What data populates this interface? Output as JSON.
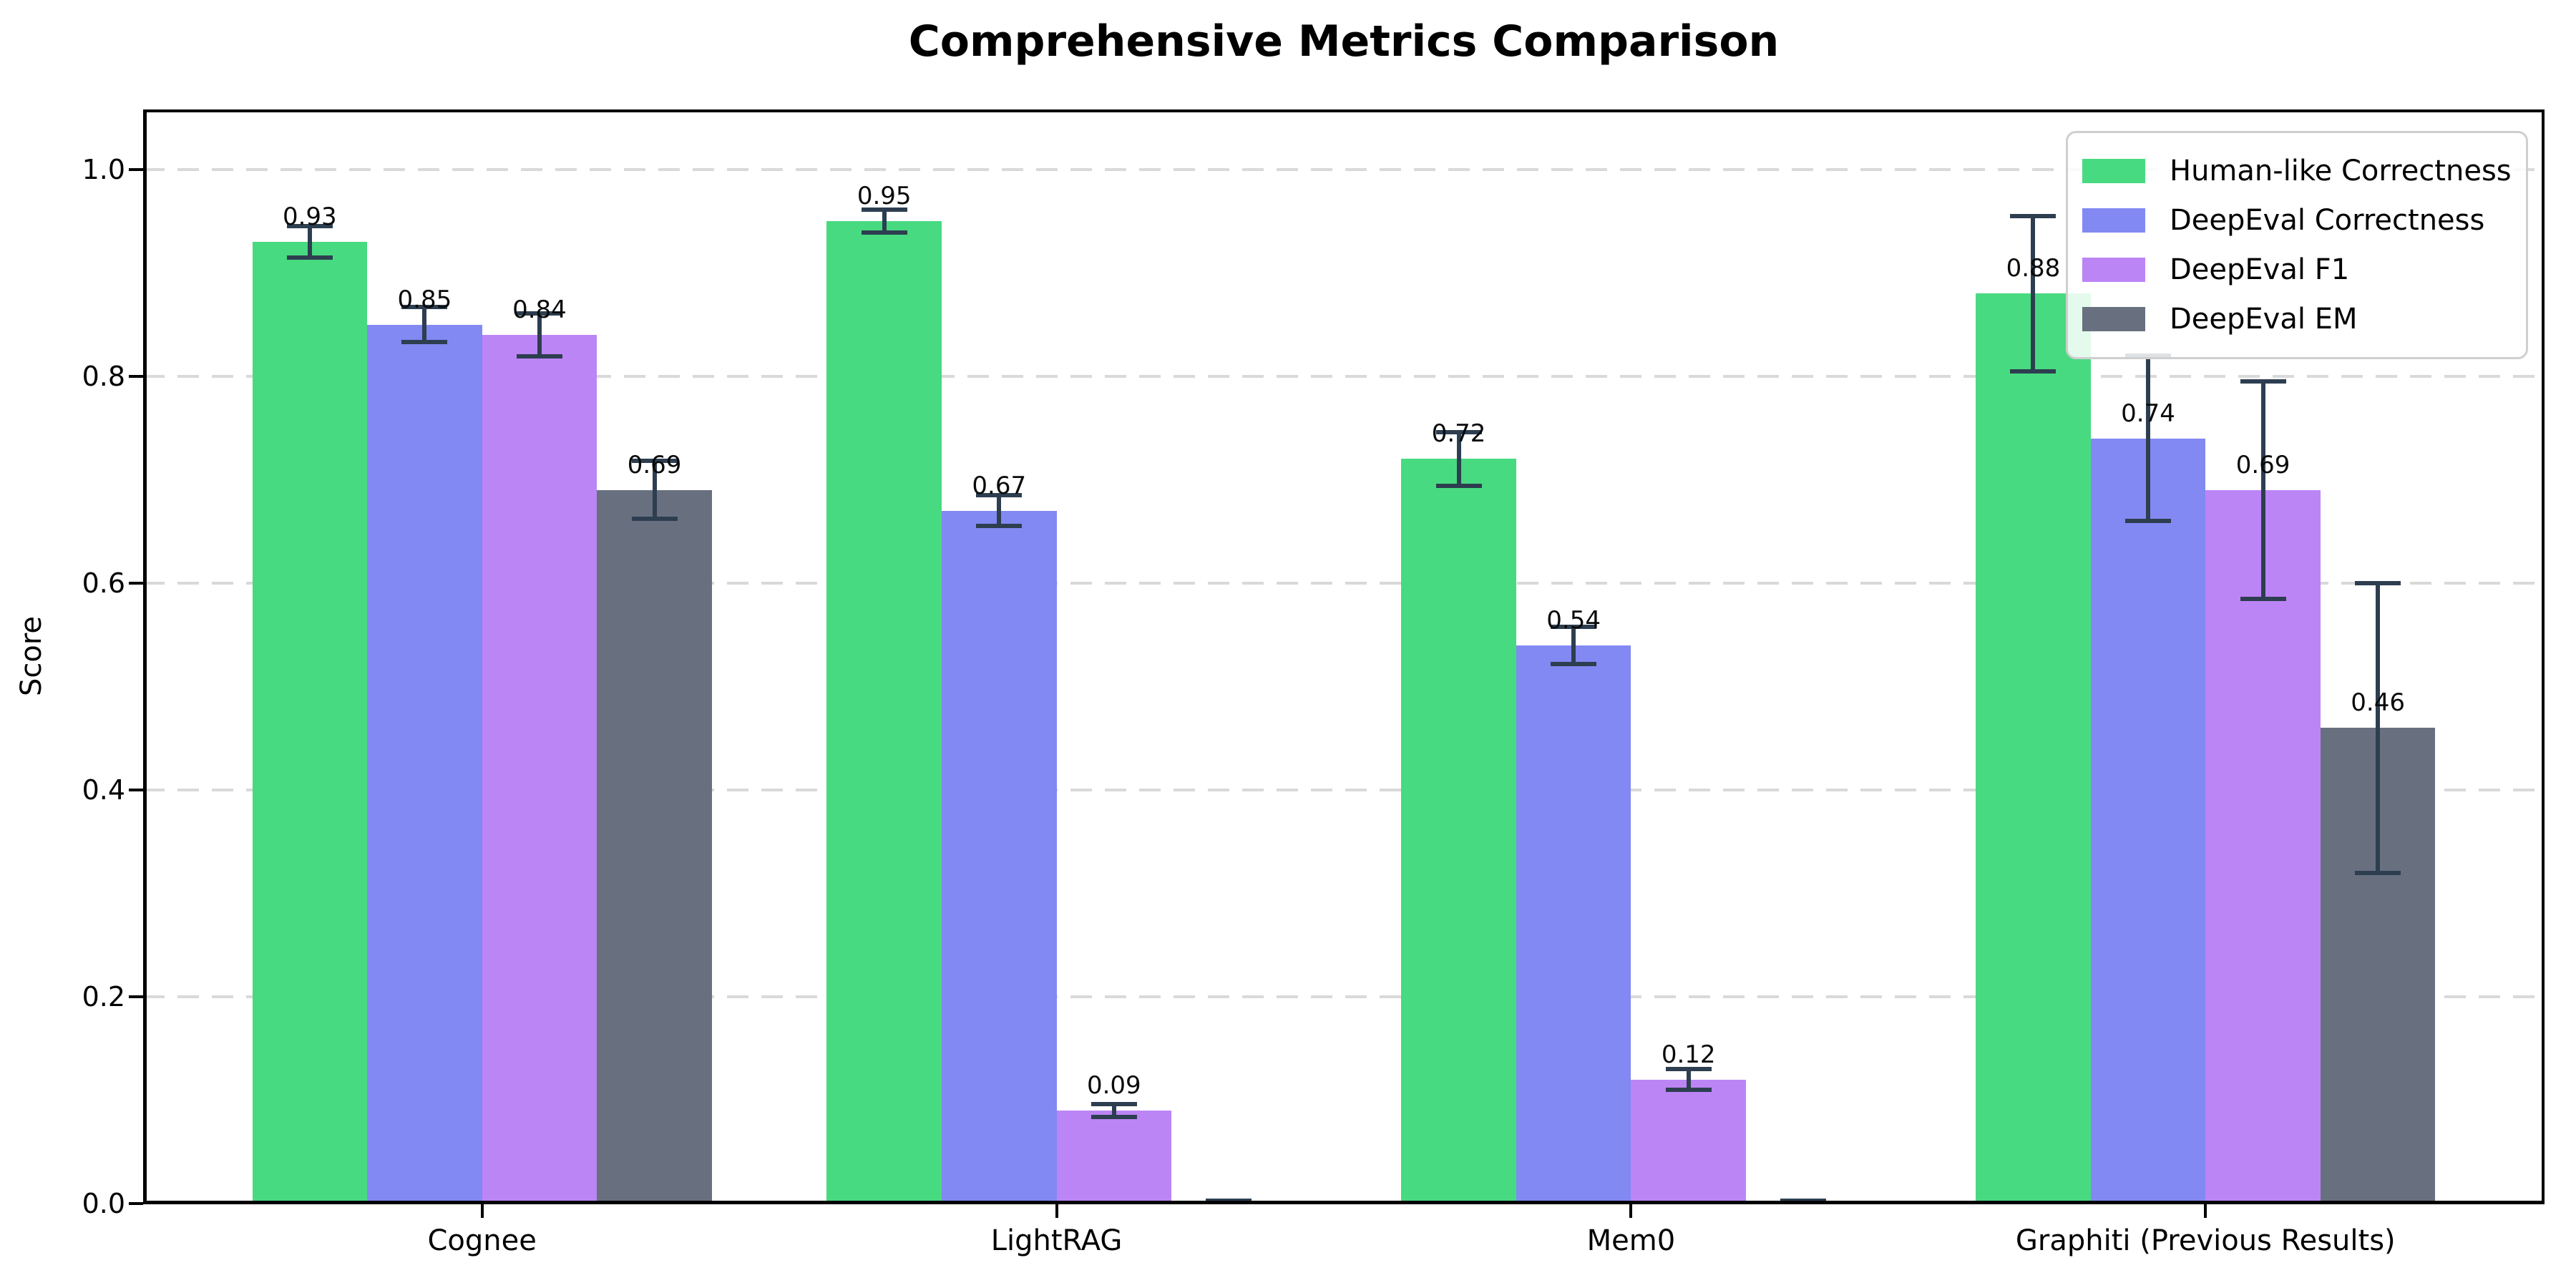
{
  "figure": {
    "title": "Comprehensive Metrics Comparison"
  },
  "chart_data": {
    "type": "bar",
    "title": "Comprehensive Metrics Comparison",
    "xlabel": "",
    "ylabel": "Score",
    "categories": [
      "Cognee",
      "LightRAG",
      "Mem0",
      "Graphiti (Previous Results)"
    ],
    "series": [
      {
        "name": "Human-like Correctness",
        "color": "#48da80",
        "values": [
          0.93,
          0.95,
          0.72,
          0.88
        ],
        "errors": [
          0.015,
          0.011,
          0.026,
          0.075
        ],
        "labels": [
          "0.93",
          "0.95",
          "0.72",
          "0.88"
        ]
      },
      {
        "name": "DeepEval Correctness",
        "color": "#8289f2",
        "values": [
          0.85,
          0.67,
          0.54,
          0.74
        ],
        "errors": [
          0.017,
          0.015,
          0.018,
          0.08
        ],
        "labels": [
          "0.85",
          "0.67",
          "0.54",
          "0.74"
        ]
      },
      {
        "name": "DeepEval F1",
        "color": "#bc85f5",
        "values": [
          0.84,
          0.09,
          0.12,
          0.69
        ],
        "errors": [
          0.021,
          0.006,
          0.01,
          0.105
        ],
        "labels": [
          "0.84",
          "0.09",
          "0.12",
          "0.69"
        ]
      },
      {
        "name": "DeepEval EM",
        "color": "#687080",
        "values": [
          0.69,
          0.0,
          0.0,
          0.46
        ],
        "errors": [
          0.028,
          0.003,
          0.003,
          0.14
        ],
        "labels": [
          "0.69",
          "",
          "",
          "0.46"
        ]
      }
    ],
    "yticks": {
      "values": [
        0.0,
        0.2,
        0.4,
        0.6,
        0.8,
        1.0
      ],
      "labels": [
        "0.0",
        "0.2",
        "0.4",
        "0.6",
        "0.8",
        "1.0"
      ]
    },
    "ylim": [
      0,
      1.058
    ],
    "grid": "horizontal-dashed",
    "grid_color": "#d9d9d9",
    "errorbar_color": "#2d3e50",
    "legend_position": "upper-right",
    "bar_width_fraction": 0.2
  }
}
